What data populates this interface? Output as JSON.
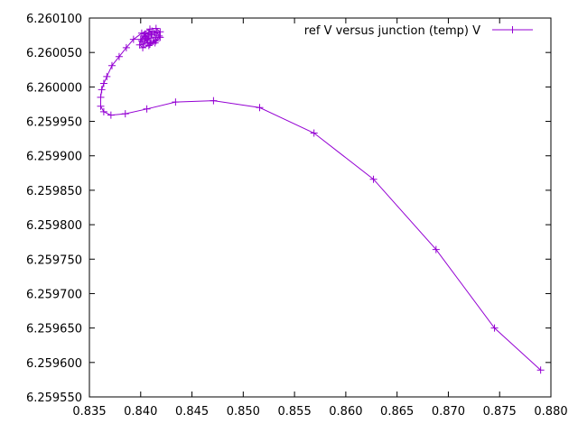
{
  "chart_data": {
    "type": "line",
    "title": "",
    "xlabel": "",
    "ylabel": "",
    "xlim": [
      0.835,
      0.88
    ],
    "ylim": [
      6.25955,
      6.2601
    ],
    "x_ticks": [
      "0.835",
      "0.840",
      "0.845",
      "0.850",
      "0.855",
      "0.860",
      "0.865",
      "0.870",
      "0.875",
      "0.880"
    ],
    "y_ticks": [
      "6.259550",
      "6.259600",
      "6.259650",
      "6.259700",
      "6.259750",
      "6.259800",
      "6.259850",
      "6.259900",
      "6.259950",
      "6.260000",
      "6.260050",
      "6.260100"
    ],
    "grid": false,
    "legend_position": "top-right",
    "marker": "+",
    "colors": {
      "series": "#9400d3",
      "axis": "#000000",
      "background": "#ffffff"
    },
    "series": [
      {
        "name": "ref V versus junction (temp) V",
        "x": [
          0.879,
          0.8745,
          0.8688,
          0.8627,
          0.8569,
          0.8516,
          0.8471,
          0.8434,
          0.8406,
          0.8385,
          0.8371,
          0.8364,
          0.8361,
          0.8361,
          0.8362,
          0.8364,
          0.8367,
          0.8372,
          0.8379,
          0.8386,
          0.8393,
          0.8401,
          0.8409,
          0.8415,
          0.8419,
          0.8419,
          0.8414,
          0.8408,
          0.8402,
          0.8399,
          0.84,
          0.8404,
          0.8411,
          0.8416,
          0.8418,
          0.8415,
          0.8409,
          0.8403,
          0.8401,
          0.8403,
          0.8408,
          0.8413,
          0.8415,
          0.8412,
          0.8407,
          0.8404,
          0.8405,
          0.8408,
          0.8411,
          0.841,
          0.8407,
          0.8406,
          0.8408
        ],
        "y": [
          6.259589,
          6.25965,
          6.259764,
          6.259866,
          6.259933,
          6.25997,
          6.25998,
          6.259978,
          6.259968,
          6.259961,
          6.259959,
          6.259964,
          6.259972,
          6.259985,
          6.259996,
          6.260005,
          6.260015,
          6.260031,
          6.260044,
          6.260057,
          6.260069,
          6.260078,
          6.260084,
          6.260085,
          6.26008,
          6.260072,
          6.260064,
          6.26006,
          6.260057,
          6.260061,
          6.260069,
          6.260077,
          6.260081,
          6.260079,
          6.260074,
          6.260067,
          6.260062,
          6.260062,
          6.260067,
          6.260074,
          6.260079,
          6.260078,
          6.260072,
          6.260066,
          6.260064,
          6.260067,
          6.260073,
          6.260077,
          6.260076,
          6.260071,
          6.260068,
          6.26007,
          6.260074
        ]
      }
    ]
  }
}
